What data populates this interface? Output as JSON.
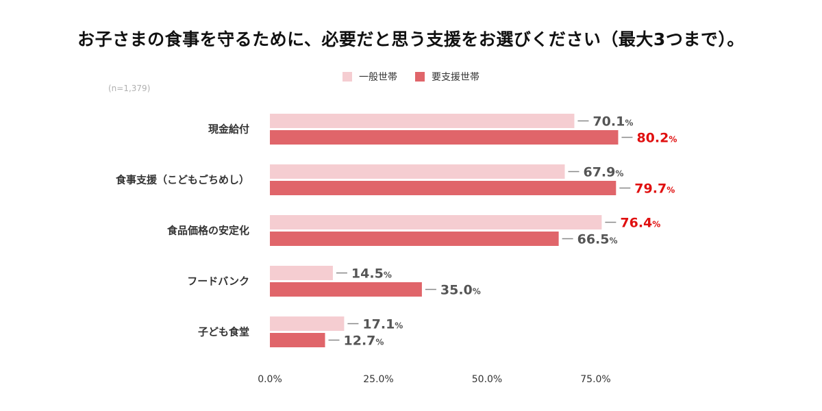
{
  "title": "お子さまの食事を守るために、必要だと思う支援をお選びください（最大3つまで）。",
  "sample_size": "(n=1,379)",
  "colors": {
    "general": "#f5cdd1",
    "support": "#e0656a",
    "highlight_text": "#e01010",
    "value_text": "#555555",
    "connector": "#888888"
  },
  "chart_data": {
    "type": "bar",
    "orientation": "horizontal",
    "title": "お子さまの食事を守るために、必要だと思う支援をお選びください（最大3つまで）。",
    "categories": [
      "現金給付",
      "食事支援（こどもごちめし）",
      "食品価格の安定化",
      "フードバンク",
      "子ども食堂"
    ],
    "series": [
      {
        "name": "一般世帯",
        "color": "#f5cdd1",
        "values": [
          70.1,
          67.9,
          76.4,
          14.5,
          17.1
        ],
        "highlight": [
          false,
          false,
          true,
          false,
          false
        ]
      },
      {
        "name": "要支援世帯",
        "color": "#e0656a",
        "values": [
          80.2,
          79.7,
          66.5,
          35.0,
          12.7
        ],
        "highlight": [
          true,
          true,
          false,
          false,
          false
        ]
      }
    ],
    "value_labels": [
      [
        "70.1",
        "67.9",
        "76.4",
        "14.5",
        "17.1"
      ],
      [
        "80.2",
        "79.7",
        "66.5",
        "35.0",
        "12.7"
      ]
    ],
    "value_unit": "%",
    "xlim": [
      0,
      100
    ],
    "xticks": [
      0,
      25,
      50,
      75
    ],
    "xtick_labels": [
      "0.0%",
      "25.0%",
      "50.0%",
      "75.0%"
    ],
    "legend_position": "top-center",
    "grid": false
  }
}
